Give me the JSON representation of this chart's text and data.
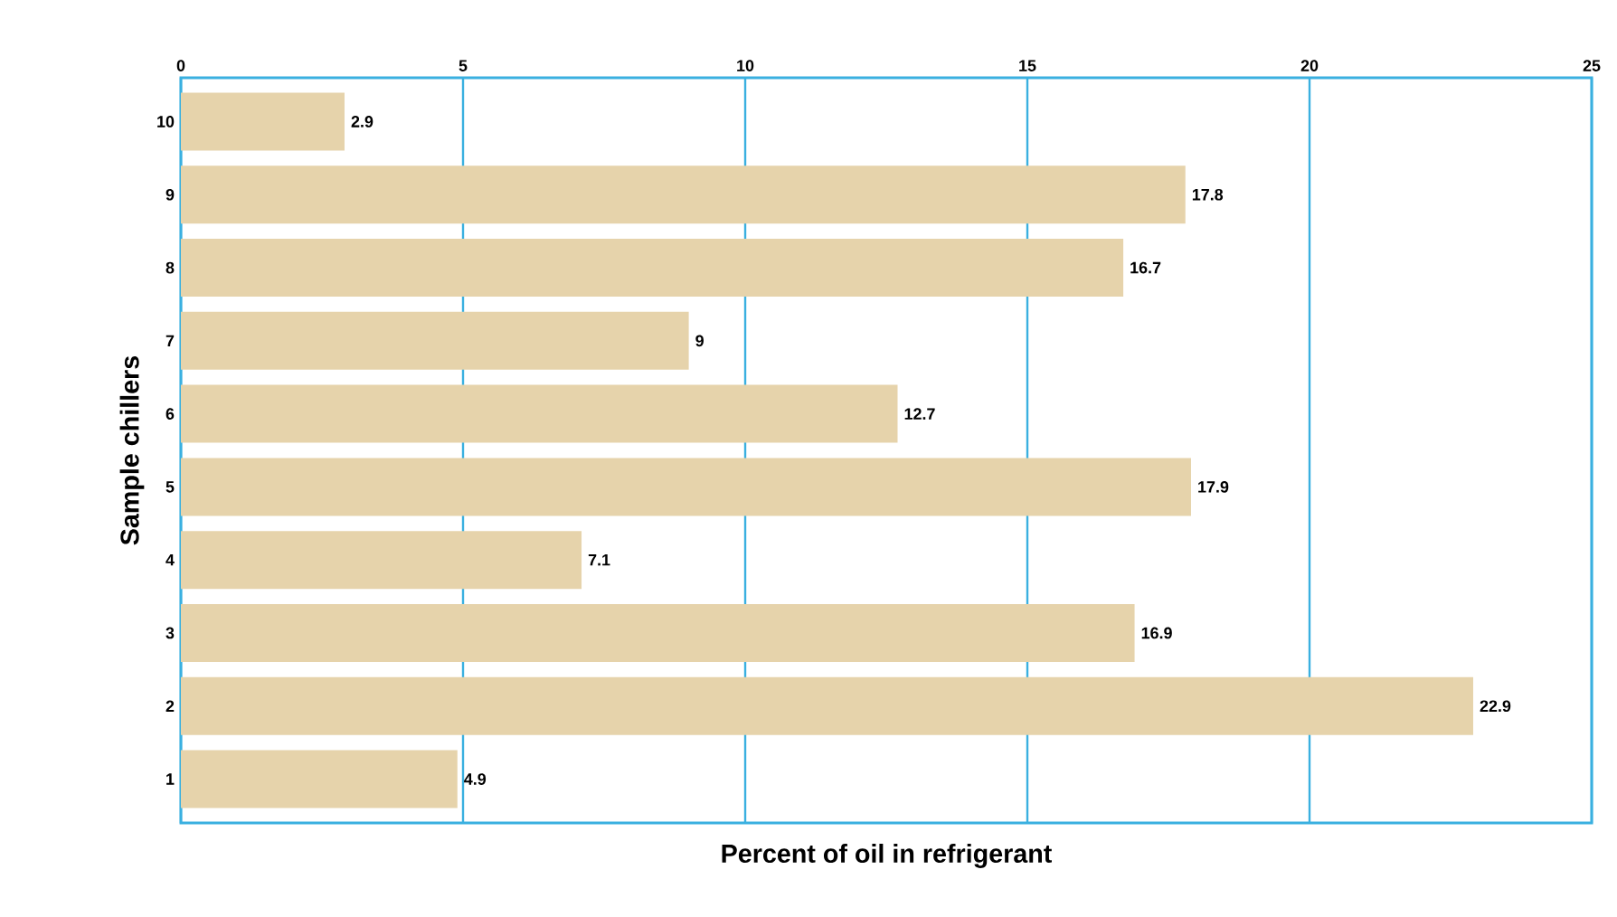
{
  "chart_data": {
    "type": "bar",
    "orientation": "horizontal",
    "xlabel": "Percent of oil in refrigerant",
    "ylabel": "Sample chillers",
    "categories": [
      "10",
      "9",
      "8",
      "7",
      "6",
      "5",
      "4",
      "3",
      "2",
      "1"
    ],
    "values": [
      2.9,
      17.8,
      16.7,
      9,
      12.7,
      17.9,
      7.1,
      16.9,
      22.9,
      4.9
    ],
    "value_labels": [
      "2.9",
      "17.8",
      "16.7",
      "9",
      "12.7",
      "17.9",
      "7.1",
      "16.9",
      "22.9",
      "4.9"
    ],
    "color": "#e6d3ab",
    "xlim": [
      0,
      25
    ],
    "xticks": [
      0,
      5,
      10,
      15,
      20,
      25
    ],
    "grid": "x"
  }
}
